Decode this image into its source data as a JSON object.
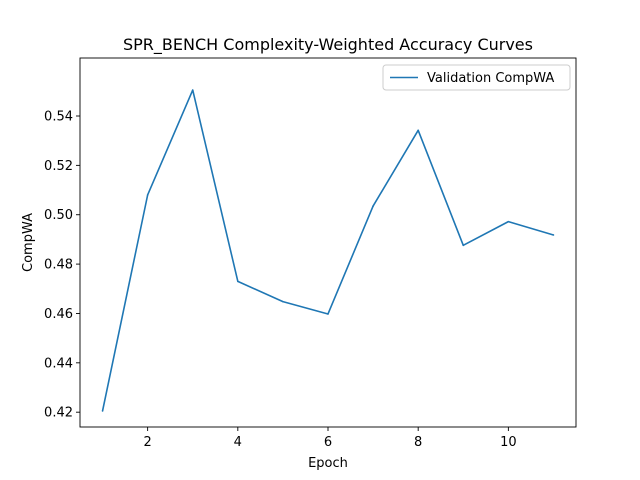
{
  "chart_data": {
    "type": "line",
    "title": "SPR_BENCH Complexity-Weighted Accuracy Curves",
    "xlabel": "Epoch",
    "ylabel": "CompWA",
    "xlim": [
      0.5,
      11.5
    ],
    "ylim": [
      0.414,
      0.5635
    ],
    "xticks": [
      2,
      4,
      6,
      8,
      10
    ],
    "yticks": [
      0.42,
      0.44,
      0.46,
      0.48,
      0.5,
      0.52,
      0.54
    ],
    "ytick_labels": [
      "0.42",
      "0.44",
      "0.46",
      "0.48",
      "0.50",
      "0.52",
      "0.54"
    ],
    "grid": false,
    "legend_position": "top-right",
    "series": [
      {
        "name": "Validation CompWA",
        "color": "#1f77b4",
        "x": [
          1,
          2,
          3,
          4,
          5,
          6,
          7,
          8,
          9,
          10,
          11
        ],
        "y": [
          0.4205,
          0.508,
          0.5505,
          0.473,
          0.4648,
          0.4598,
          0.5035,
          0.5342,
          0.4876,
          0.4972,
          0.4918
        ]
      }
    ]
  }
}
